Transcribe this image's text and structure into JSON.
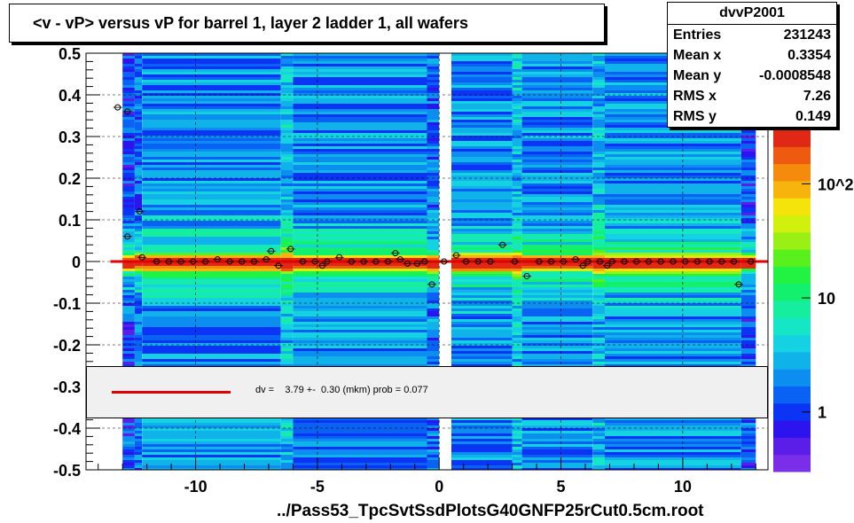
{
  "title": "<v - vP>       versus   vP for barrel 1, layer 2 ladder 1, all wafers",
  "footer": "../Pass53_TpcSvtSsdPlotsG40GNFP25rCut0.5cm.root",
  "stats": {
    "name": "dvvP2001",
    "rows": [
      {
        "label": "Entries",
        "value": "231243"
      },
      {
        "label": "Mean x",
        "value": "0.3354"
      },
      {
        "label": "Mean y",
        "value": "-0.0008548"
      },
      {
        "label": "RMS x",
        "value": "7.26"
      },
      {
        "label": "RMS y",
        "value": "0.149"
      }
    ]
  },
  "fit_legend": "dv =    3.79 +-  0.30 (mkm) prob = 0.077",
  "colors": {
    "fit_line": "#e00000",
    "palette": [
      "#7a2ee8",
      "#5a1ee8",
      "#2c14ee",
      "#0c34f4",
      "#0a62f4",
      "#0c8ef0",
      "#10b2ea",
      "#14d2e2",
      "#14e6c6",
      "#14ee9e",
      "#12f06e",
      "#22f242",
      "#5af01e",
      "#9af014",
      "#d2f00e",
      "#f4e40c",
      "#f6b40c",
      "#f68a0c",
      "#ee5a10",
      "#e02814"
    ]
  },
  "chart_data": {
    "type": "heatmap",
    "xlim": [
      -14.5,
      13.5
    ],
    "ylim": [
      -0.5,
      0.5
    ],
    "x_ticks": [
      -10,
      -5,
      0,
      5,
      10
    ],
    "y_ticks": [
      -0.5,
      -0.4,
      -0.3,
      -0.2,
      -0.1,
      0,
      0.1,
      0.2,
      0.3,
      0.4,
      0.5
    ],
    "x_tick_labels": [
      "-10",
      "-5",
      "0",
      "5",
      "10"
    ],
    "y_tick_labels": [
      "-0.5",
      "-0.4",
      "-0.3",
      "-0.2",
      "-0.1",
      "0",
      "0.1",
      "0.2",
      "0.3",
      "0.4",
      "0.5"
    ],
    "colorbar": {
      "scale": "log",
      "tick_labels": [
        "1",
        "10",
        "10^2"
      ],
      "tick_values": [
        1,
        10,
        100
      ]
    },
    "grid": true,
    "fit_line": {
      "y": 0.0,
      "x_range": [
        -13.5,
        13.5
      ]
    },
    "profile_points": [
      {
        "x": -13.2,
        "y": 0.37
      },
      {
        "x": -12.8,
        "y": 0.36
      },
      {
        "x": -12.3,
        "y": 0.12
      },
      {
        "x": -12.8,
        "y": 0.06
      },
      {
        "x": -12.2,
        "y": 0.01
      },
      {
        "x": -11.6,
        "y": 0.0
      },
      {
        "x": -11.1,
        "y": 0.0
      },
      {
        "x": -10.6,
        "y": 0.0
      },
      {
        "x": -10.1,
        "y": 0.0
      },
      {
        "x": -9.6,
        "y": 0.0
      },
      {
        "x": -9.1,
        "y": 0.005
      },
      {
        "x": -8.6,
        "y": 0.0
      },
      {
        "x": -8.1,
        "y": 0.0
      },
      {
        "x": -7.6,
        "y": 0.0
      },
      {
        "x": -7.1,
        "y": 0.005
      },
      {
        "x": -6.9,
        "y": 0.025
      },
      {
        "x": -6.6,
        "y": -0.01
      },
      {
        "x": -6.1,
        "y": 0.03
      },
      {
        "x": -5.6,
        "y": 0.0
      },
      {
        "x": -5.1,
        "y": 0.0
      },
      {
        "x": -4.8,
        "y": -0.01
      },
      {
        "x": -4.6,
        "y": 0.0
      },
      {
        "x": -4.1,
        "y": 0.01
      },
      {
        "x": -3.6,
        "y": 0.0
      },
      {
        "x": -3.1,
        "y": 0.0
      },
      {
        "x": -2.6,
        "y": 0.0
      },
      {
        "x": -2.1,
        "y": 0.0
      },
      {
        "x": -1.8,
        "y": 0.02
      },
      {
        "x": -1.6,
        "y": 0.005
      },
      {
        "x": -1.3,
        "y": -0.005
      },
      {
        "x": -0.9,
        "y": -0.005
      },
      {
        "x": -0.6,
        "y": 0.0
      },
      {
        "x": -0.3,
        "y": -0.055
      },
      {
        "x": 0.2,
        "y": 0.0
      },
      {
        "x": 0.7,
        "y": 0.015
      },
      {
        "x": 1.1,
        "y": 0.0
      },
      {
        "x": 1.6,
        "y": 0.0
      },
      {
        "x": 2.1,
        "y": 0.0
      },
      {
        "x": 2.6,
        "y": 0.04
      },
      {
        "x": 3.1,
        "y": 0.0
      },
      {
        "x": 3.6,
        "y": -0.035
      },
      {
        "x": 4.1,
        "y": 0.0
      },
      {
        "x": 4.6,
        "y": 0.0
      },
      {
        "x": 5.1,
        "y": 0.0
      },
      {
        "x": 5.6,
        "y": 0.005
      },
      {
        "x": 5.9,
        "y": -0.01
      },
      {
        "x": 6.1,
        "y": 0.0
      },
      {
        "x": 6.6,
        "y": 0.0
      },
      {
        "x": 6.9,
        "y": -0.01
      },
      {
        "x": 7.1,
        "y": 0.0
      },
      {
        "x": 7.6,
        "y": 0.0
      },
      {
        "x": 8.1,
        "y": 0.0
      },
      {
        "x": 8.6,
        "y": 0.0
      },
      {
        "x": 9.1,
        "y": 0.0
      },
      {
        "x": 9.6,
        "y": 0.0
      },
      {
        "x": 10.1,
        "y": 0.0
      },
      {
        "x": 10.6,
        "y": 0.0
      },
      {
        "x": 11.1,
        "y": 0.0
      },
      {
        "x": 11.6,
        "y": 0.0
      },
      {
        "x": 12.1,
        "y": 0.0
      },
      {
        "x": 12.3,
        "y": -0.055
      },
      {
        "x": 12.8,
        "y": 0.0
      }
    ],
    "columns": [
      {
        "x0": -13.0,
        "x1": -12.5,
        "level": 0.12
      },
      {
        "x0": -12.5,
        "x1": -12.2,
        "level": 0.3
      },
      {
        "x0": -12.2,
        "x1": -6.5,
        "level": 0.5
      },
      {
        "x0": -6.5,
        "x1": -6.0,
        "level": 0.85
      },
      {
        "x0": -6.0,
        "x1": -0.5,
        "level": 0.5
      },
      {
        "x0": -0.5,
        "x1": 0.0,
        "level": 0.35
      },
      {
        "x0": 0.5,
        "x1": 3.0,
        "level": 0.5
      },
      {
        "x0": 3.0,
        "x1": 3.4,
        "level": 0.8
      },
      {
        "x0": 3.4,
        "x1": 6.3,
        "level": 0.5
      },
      {
        "x0": 6.3,
        "x1": 6.8,
        "level": 0.85
      },
      {
        "x0": 6.8,
        "x1": 12.4,
        "level": 0.5
      },
      {
        "x0": 12.4,
        "x1": 13.0,
        "level": 0.12
      }
    ]
  }
}
